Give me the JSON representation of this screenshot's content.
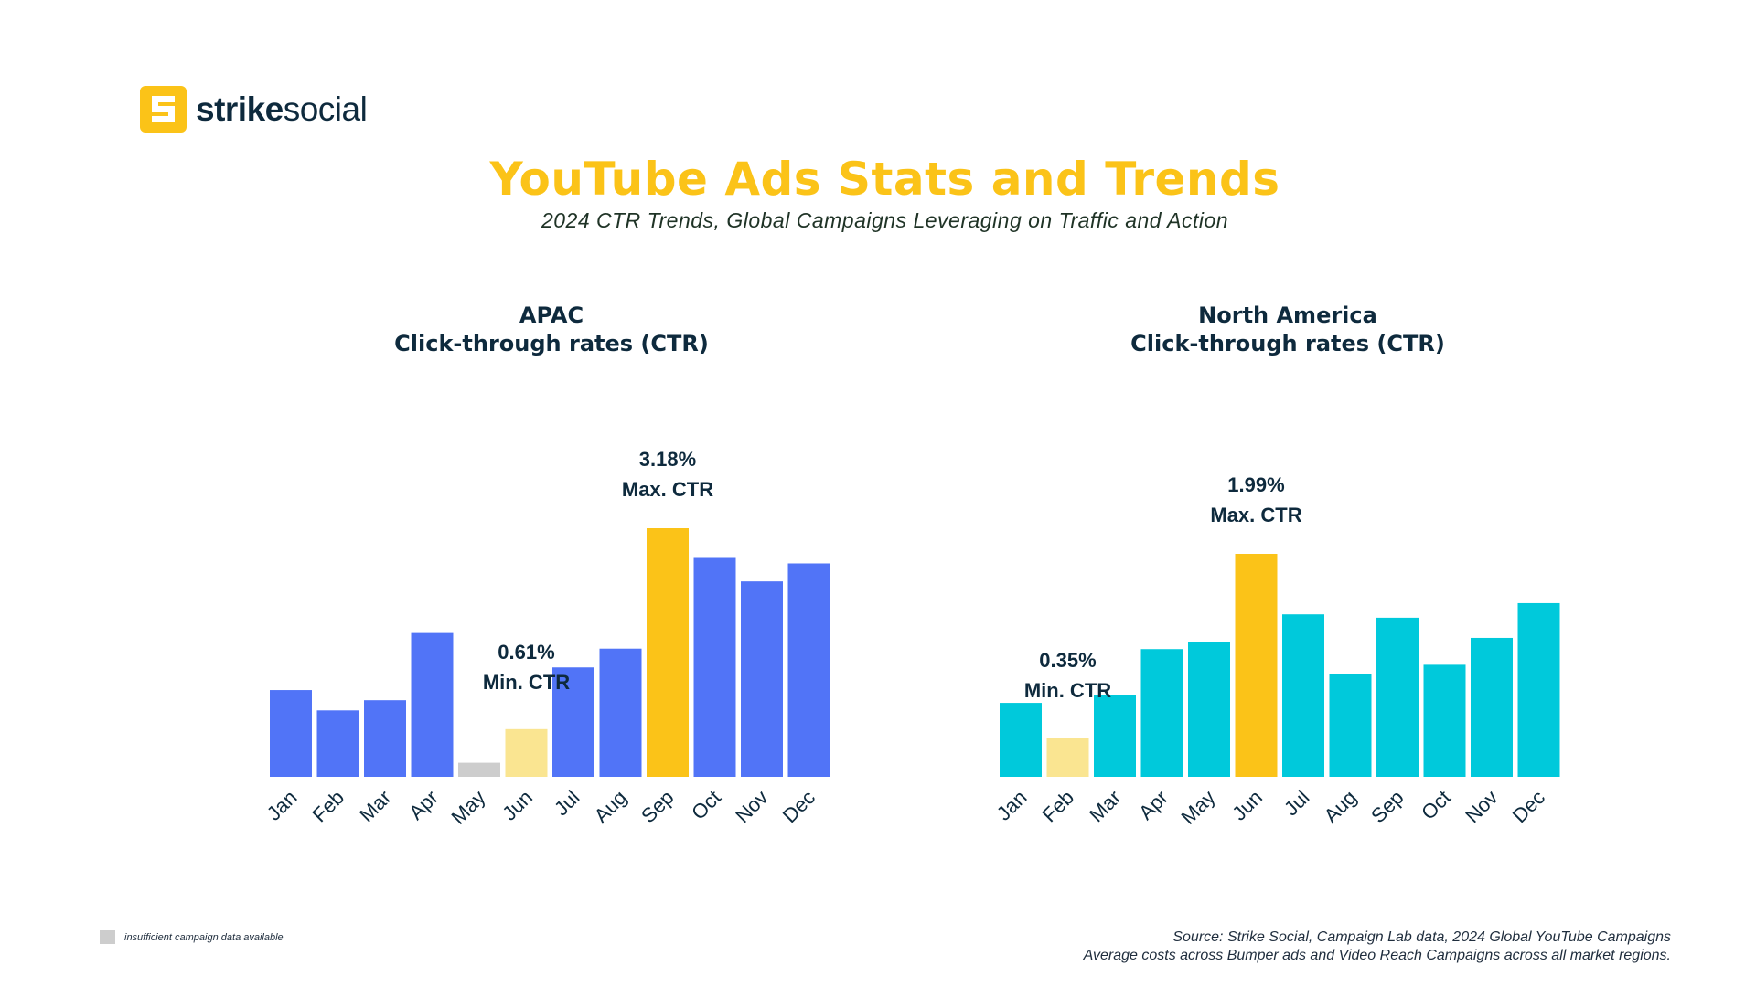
{
  "brand": {
    "name_bold": "strike",
    "name_light": "social",
    "accent": "#fbc318"
  },
  "header": {
    "title": "YouTube Ads Stats and Trends",
    "subtitle": "2024 CTR Trends, Global Campaigns Leveraging on Traffic and Action"
  },
  "colors": {
    "apac_bar": "#5174f7",
    "na_bar": "#00c9db",
    "max_bar": "#fbc318",
    "min_bar": "#fae591",
    "insufficient_bar": "#cdcdcd",
    "text_dark": "#0e2a3d"
  },
  "chart_data": [
    {
      "type": "bar",
      "title": "APAC",
      "subtitle": "Click-through rates (CTR)",
      "categories": [
        "Jan",
        "Feb",
        "Mar",
        "Apr",
        "May",
        "Jun",
        "Jul",
        "Aug",
        "Sep",
        "Oct",
        "Nov",
        "Dec"
      ],
      "values": [
        1.11,
        0.85,
        0.98,
        1.84,
        0.18,
        0.61,
        1.4,
        1.64,
        3.18,
        2.8,
        2.5,
        2.73
      ],
      "units": "%",
      "highlights": {
        "max": {
          "index": 8,
          "value_label": "3.18%",
          "label": "Max. CTR"
        },
        "min": {
          "index": 5,
          "value_label": "0.61%",
          "label": "Min. CTR"
        },
        "insufficient": [
          4
        ]
      },
      "ylim": [
        0,
        3.18
      ],
      "grid": false
    },
    {
      "type": "bar",
      "title": "North America",
      "subtitle": "Click-through rates (CTR)",
      "categories": [
        "Jan",
        "Feb",
        "Mar",
        "Apr",
        "May",
        "Jun",
        "Jul",
        "Aug",
        "Sep",
        "Oct",
        "Nov",
        "Dec"
      ],
      "values": [
        0.66,
        0.35,
        0.73,
        1.14,
        1.2,
        1.99,
        1.45,
        0.92,
        1.42,
        1.0,
        1.24,
        1.55
      ],
      "units": "%",
      "highlights": {
        "max": {
          "index": 5,
          "value_label": "1.99%",
          "label": "Max. CTR"
        },
        "min": {
          "index": 1,
          "value_label": "0.35%",
          "label": "Min. CTR"
        },
        "insufficient": []
      },
      "ylim": [
        0,
        1.99
      ],
      "grid": false
    }
  ],
  "legend": {
    "insufficient_label": "insufficient campaign data available"
  },
  "footer": {
    "source_line1": "Source: Strike Social, Campaign Lab data, 2024 Global YouTube Campaigns",
    "source_line2": "Average costs across Bumper ads and Video Reach Campaigns across all market regions."
  }
}
